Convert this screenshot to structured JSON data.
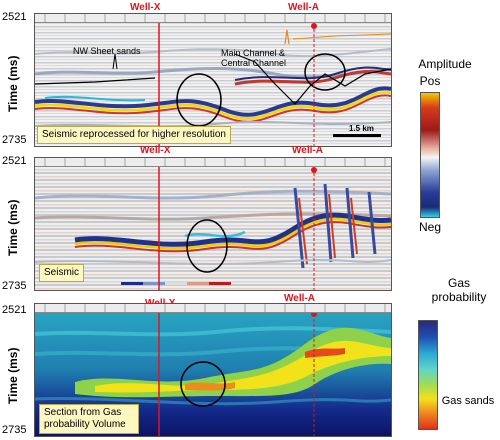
{
  "axis": {
    "time_label": "Time (ms)",
    "top_value": "2521",
    "bottom_value": "2735"
  },
  "wells": {
    "well_x": "Well-X",
    "well_a": "Well-A"
  },
  "panels": [
    {
      "caption": "Seismic reprocessed for higher resolution",
      "annotations": {
        "nw_sheet": "NW Sheet sands",
        "main_channel": "Main Channel & Central Channel",
        "scale_bar": "1.5 km"
      }
    },
    {
      "caption": "Seismic"
    },
    {
      "caption": "Section from Gas probability Volume"
    }
  ],
  "colorbars": {
    "amplitude": {
      "title": "Amplitude",
      "top": "Pos",
      "bottom": "Neg"
    },
    "gas": {
      "title": "Gas probability",
      "bottom": "Gas sands"
    }
  }
}
